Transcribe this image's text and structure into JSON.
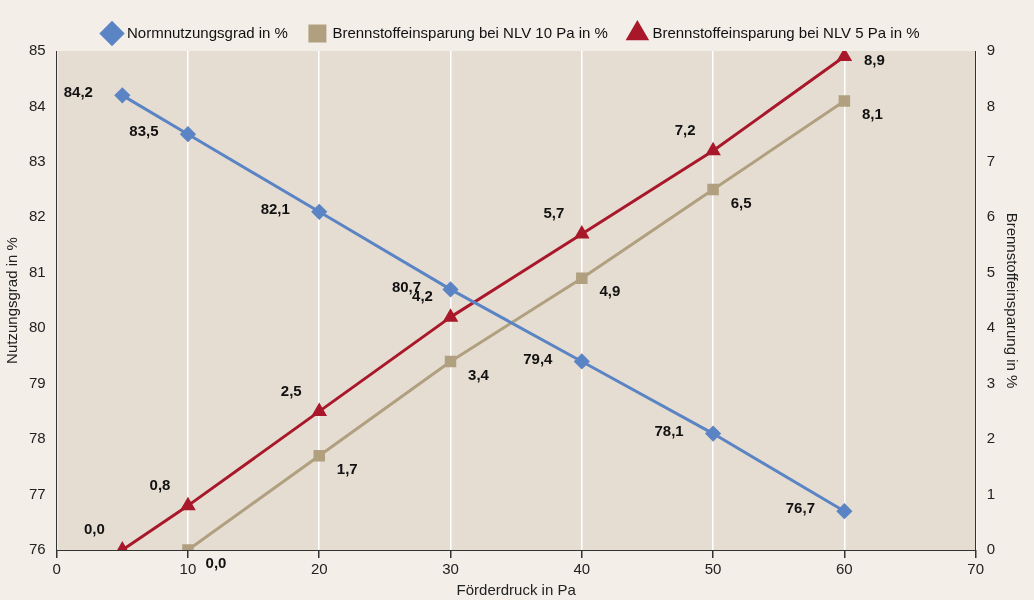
{
  "chart_data": {
    "type": "line",
    "xlabel": "Förderdruck in Pa",
    "ylabel": "Nutzungsgrad in %",
    "y2label": "Brennstoffeinsparung in %",
    "xlim": [
      0,
      70
    ],
    "xticks": [
      0,
      10,
      20,
      30,
      40,
      50,
      60,
      70
    ],
    "ylim": [
      76,
      85
    ],
    "yticks": [
      76,
      77,
      78,
      79,
      80,
      81,
      82,
      83,
      84,
      85
    ],
    "y2lim": [
      0,
      9
    ],
    "y2ticks": [
      0,
      1,
      2,
      3,
      4,
      5,
      6,
      7,
      8,
      9
    ],
    "grid": "x",
    "legend": "top",
    "line_style": "solid",
    "series": [
      {
        "name": "Normnutzungsgrad in %",
        "color": "#5b84c4",
        "marker": "diamond",
        "x": [
          5,
          10,
          20,
          30,
          40,
          50,
          60
        ],
        "values": [
          84.2,
          83.5,
          82.1,
          80.7,
          79.4,
          78.1,
          76.7
        ],
        "value_labels": [
          "84,2",
          "83,5",
          "82,1",
          "80,7",
          "79,4",
          "78,1",
          "76,7"
        ]
      },
      {
        "name": "Brennstoffeinsparung bei NLV 10 Pa in %",
        "color": "#b0a07f",
        "marker": "square",
        "axis": "y2",
        "x": [
          10,
          20,
          30,
          40,
          50,
          60
        ],
        "values": [
          0,
          1.7,
          3.4,
          4.9,
          6.5,
          8.1
        ],
        "value_labels": [
          "0,0",
          "1,7",
          "3,4",
          "4,9",
          "6,5",
          "8,1"
        ]
      },
      {
        "name": "Brennstoffeinsparung bei NLV 5 Pa in %",
        "color": "#a8182a",
        "marker": "triangle",
        "axis": "y2",
        "x": [
          5,
          10,
          20,
          30,
          40,
          50,
          60
        ],
        "values": [
          0,
          0.8,
          2.5,
          4.2,
          5.7,
          7.2,
          8.9
        ],
        "value_labels": [
          "0,0",
          "0,8",
          "2,5",
          "4,2",
          "5,7",
          "7,2",
          "8,9"
        ]
      }
    ]
  }
}
